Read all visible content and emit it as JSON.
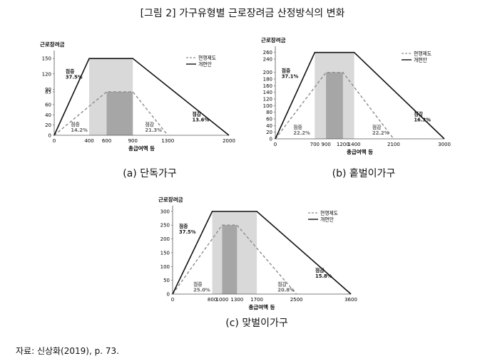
{
  "figure_title": "[그림 2] 가구유형별 근로장려금 산정방식의 변화",
  "source_note": "자료: 신상화(2019), p. 73.",
  "chart_data": [
    {
      "type": "line",
      "caption": "(a) 단독가구",
      "ylabel": "근로장려금",
      "xlabel": "총급여액 등",
      "xlim": [
        0,
        2000
      ],
      "ylim": [
        0,
        160
      ],
      "xticks": [
        0,
        400,
        600,
        900,
        1300,
        2000
      ],
      "yticks": [
        0,
        20,
        40,
        60,
        85,
        90,
        120,
        150
      ],
      "legend": [
        "현행제도",
        "개편안"
      ],
      "series": [
        {
          "name": "현행제도",
          "style": "dashed",
          "x": [
            0,
            600,
            900,
            1300
          ],
          "y": [
            0,
            85,
            85,
            0
          ]
        },
        {
          "name": "개편안",
          "style": "solid",
          "x": [
            0,
            400,
            900,
            2000
          ],
          "y": [
            0,
            150,
            150,
            0
          ]
        }
      ],
      "flat_zones": [
        {
          "x": [
            400,
            900
          ],
          "y": 150,
          "color": "#d9d9d9"
        },
        {
          "x": [
            600,
            900
          ],
          "y": 85,
          "color": "#a6a6a6"
        }
      ],
      "annotations": [
        {
          "lines": [
            "점증",
            "37.5%"
          ],
          "x": 130,
          "y": 122,
          "color": "#111111"
        },
        {
          "lines": [
            "점증",
            "14.2%"
          ],
          "x": 190,
          "y": 18,
          "color": "#666666"
        },
        {
          "lines": [
            "점감",
            "21.3%"
          ],
          "x": 1040,
          "y": 18,
          "color": "#666666"
        },
        {
          "lines": [
            "점감",
            "13.6%"
          ],
          "x": 1580,
          "y": 38,
          "color": "#111111"
        }
      ]
    },
    {
      "type": "line",
      "caption": "(b) 홑벌이가구",
      "ylabel": "근로장려금",
      "xlabel": "총급여액 등",
      "xlim": [
        0,
        3000
      ],
      "ylim": [
        0,
        270
      ],
      "xticks": [
        0,
        700,
        900,
        1200,
        1400,
        2100,
        3000
      ],
      "yticks": [
        0,
        20,
        40,
        60,
        80,
        100,
        120,
        140,
        160,
        180,
        200,
        240,
        260
      ],
      "legend": [
        "현행제도",
        "개편안"
      ],
      "series": [
        {
          "name": "현행제도",
          "style": "dashed",
          "x": [
            0,
            900,
            1200,
            2100
          ],
          "y": [
            0,
            200,
            200,
            0
          ]
        },
        {
          "name": "개편안",
          "style": "solid",
          "x": [
            0,
            700,
            1400,
            3000
          ],
          "y": [
            0,
            260,
            260,
            0
          ]
        }
      ],
      "flat_zones": [
        {
          "x": [
            700,
            1400
          ],
          "y": 260,
          "color": "#d9d9d9"
        },
        {
          "x": [
            900,
            1200
          ],
          "y": 200,
          "color": "#a6a6a6"
        }
      ],
      "annotations": [
        {
          "lines": [
            "점증",
            "37.1%"
          ],
          "x": 110,
          "y": 200,
          "color": "#111111"
        },
        {
          "lines": [
            "점증",
            "22.2%"
          ],
          "x": 320,
          "y": 30,
          "color": "#666666"
        },
        {
          "lines": [
            "점감",
            "22.2%"
          ],
          "x": 1720,
          "y": 30,
          "color": "#666666"
        },
        {
          "lines": [
            "점감",
            "16.3%"
          ],
          "x": 2460,
          "y": 70,
          "color": "#111111"
        }
      ]
    },
    {
      "type": "line",
      "caption": "(c) 맞벌이가구",
      "ylabel": "근로장려금",
      "xlabel": "총급여액 등",
      "xlim": [
        0,
        3600
      ],
      "ylim": [
        0,
        310
      ],
      "xticks": [
        0,
        800,
        1000,
        1300,
        1700,
        2500,
        3600
      ],
      "yticks": [
        0,
        50,
        100,
        150,
        200,
        250,
        300
      ],
      "legend": [
        "현행제도",
        "개편안"
      ],
      "series": [
        {
          "name": "현행제도",
          "style": "dashed",
          "x": [
            0,
            1000,
            1300,
            2500
          ],
          "y": [
            0,
            250,
            250,
            0
          ]
        },
        {
          "name": "개편안",
          "style": "solid",
          "x": [
            0,
            800,
            1700,
            3600
          ],
          "y": [
            0,
            300,
            300,
            0
          ]
        }
      ],
      "flat_zones": [
        {
          "x": [
            800,
            1700
          ],
          "y": 300,
          "color": "#d9d9d9"
        },
        {
          "x": [
            1000,
            1300
          ],
          "y": 250,
          "color": "#a6a6a6"
        }
      ],
      "annotations": [
        {
          "lines": [
            "점증",
            "37.5%"
          ],
          "x": 130,
          "y": 240,
          "color": "#111111"
        },
        {
          "lines": [
            "점증",
            "25.0%"
          ],
          "x": 420,
          "y": 30,
          "color": "#666666"
        },
        {
          "lines": [
            "점감",
            "20.8%"
          ],
          "x": 2120,
          "y": 30,
          "color": "#666666"
        },
        {
          "lines": [
            "점감",
            "15.8%"
          ],
          "x": 2880,
          "y": 80,
          "color": "#111111"
        }
      ]
    }
  ]
}
